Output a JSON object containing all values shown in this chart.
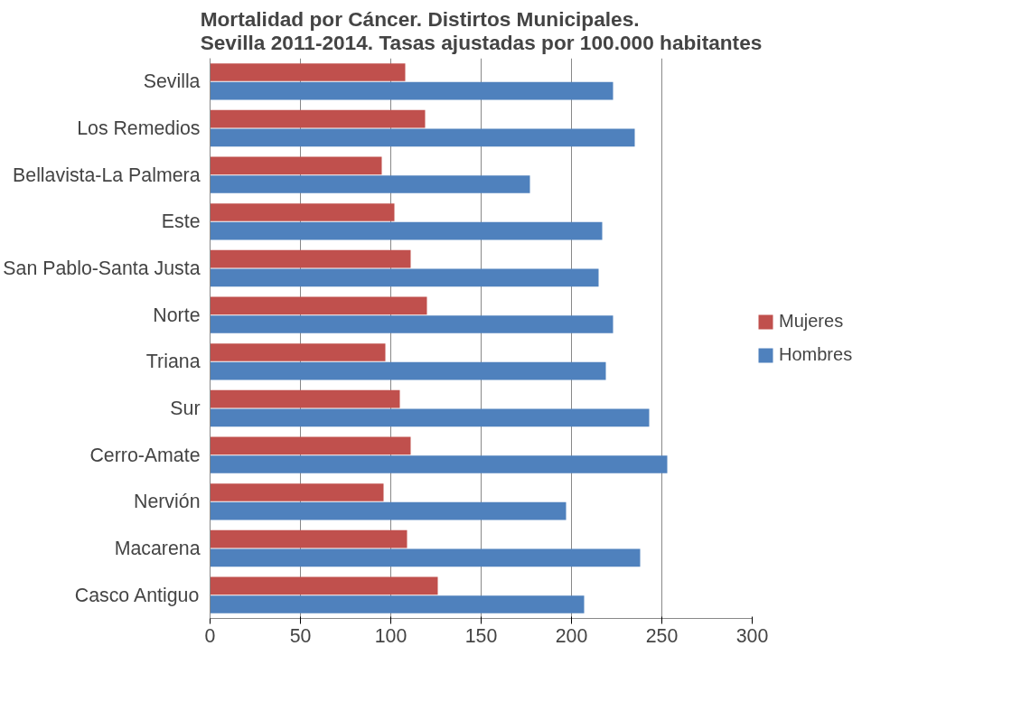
{
  "chart_data": {
    "type": "bar",
    "orientation": "horizontal",
    "title": "Mortalidad por Cáncer. Distirtos Municipales.\nSevilla 2011-2014. Tasas ajustadas por 100.000 habitantes",
    "categories": [
      "Sevilla",
      "Los Remedios",
      "Bellavista-La Palmera",
      "Este",
      "San Pablo-Santa Justa",
      "Norte",
      "Triana",
      "Sur",
      "Cerro-Amate",
      "Nervión",
      "Macarena",
      "Casco Antiguo"
    ],
    "series": [
      {
        "name": "Mujeres",
        "color": "#c0504d",
        "values": [
          108,
          119,
          95,
          102,
          111,
          120,
          97,
          105,
          111,
          96,
          109,
          126
        ]
      },
      {
        "name": "Hombres",
        "color": "#4f81bd",
        "values": [
          223,
          235,
          177,
          217,
          215,
          223,
          219,
          243,
          253,
          197,
          238,
          207
        ]
      }
    ],
    "xlim": [
      0,
      300
    ],
    "xticks": [
      0,
      50,
      100,
      150,
      200,
      250,
      300
    ],
    "grid": "x",
    "legend": "right"
  }
}
